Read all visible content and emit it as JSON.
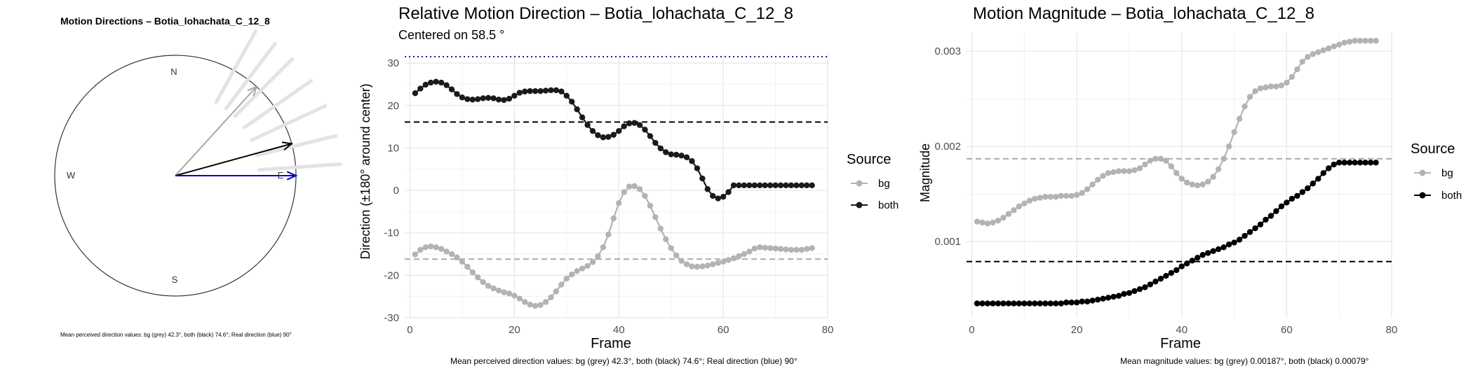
{
  "colors": {
    "bg": "#b3b3b3",
    "both": "#1a1a1a",
    "real": "#0000cc",
    "dark_blue_dotted": "#1f1f8f",
    "grid": "#ebebeb"
  },
  "compass": {
    "title": "Motion Directions – Botia_lohachata_C_12_8",
    "labels": {
      "n": "N",
      "e": "E",
      "s": "S",
      "w": "W"
    },
    "caption": "Mean perceived direction values: bg (grey) 42.3°, both (black) 74.6°; Real direction (blue) 90°"
  },
  "direction_plot": {
    "title": "Relative Motion Direction – Botia_lohachata_C_12_8",
    "subtitle": "Centered on  58.5 °",
    "xlabel": "Frame",
    "ylabel": "Direction (±180° around center)",
    "xticks": [
      "0",
      "20",
      "40",
      "60",
      "80"
    ],
    "yticks": [
      "-30",
      "-20",
      "-10",
      "0",
      "10",
      "20",
      "30"
    ],
    "legend_title": "Source",
    "legend_bg": "bg",
    "legend_both": "both",
    "caption": "Mean perceived direction values: bg (grey) 42.3°, both (black) 74.6°; Real direction (blue) 90°"
  },
  "magnitude_plot": {
    "title": "Motion Magnitude – Botia_lohachata_C_12_8",
    "xlabel": "Frame",
    "ylabel": "Magnitude",
    "xticks": [
      "0",
      "20",
      "40",
      "60",
      "80"
    ],
    "yticks": [
      "0.001",
      "0.002",
      "0.003"
    ],
    "legend_title": "Source",
    "legend_bg": "bg",
    "legend_both": "both",
    "caption": "Mean magnitude values: bg (grey) 0.00187°, both (black) 0.00079°"
  },
  "chart_data": [
    {
      "type": "polar",
      "arrows": [
        {
          "name": "bg",
          "angle_deg": 42.3,
          "color": "#a8a8a8"
        },
        {
          "name": "both",
          "angle_deg": 74.6,
          "color": "#000000"
        },
        {
          "name": "real",
          "angle_deg": 90,
          "color": "#0000cc"
        }
      ],
      "faint_arrows_deg": [
        29,
        37,
        45,
        55,
        65,
        76,
        86
      ]
    },
    {
      "type": "line",
      "xlim": [
        -1,
        80
      ],
      "ylim": [
        -30,
        32
      ],
      "hlines": [
        {
          "y": 31.5,
          "style": "dotted",
          "color": "#1f1f8f"
        },
        {
          "y": 16.1,
          "style": "dashed",
          "color": "#000000"
        },
        {
          "y": -16.2,
          "style": "dashed",
          "color": "#aaaaaa"
        }
      ],
      "series": [
        {
          "name": "bg",
          "color": "#b3b3b3",
          "x": [
            1,
            2,
            3,
            4,
            5,
            6,
            7,
            8,
            9,
            10,
            11,
            12,
            13,
            14,
            15,
            16,
            17,
            18,
            19,
            20,
            21,
            22,
            23,
            24,
            25,
            26,
            27,
            28,
            29,
            30,
            31,
            32,
            33,
            34,
            35,
            36,
            37,
            38,
            39,
            40,
            41,
            42,
            43,
            44,
            45,
            46,
            47,
            48,
            49,
            50,
            51,
            52,
            53,
            54,
            55,
            56,
            57,
            58,
            59,
            60,
            61,
            62,
            63,
            64,
            65,
            66,
            67,
            68,
            69,
            70,
            71,
            72,
            73,
            74,
            75,
            76,
            77
          ],
          "y": [
            -15.1,
            -14.0,
            -13.4,
            -13.2,
            -13.4,
            -13.8,
            -14.4,
            -15.0,
            -15.8,
            -16.8,
            -18.0,
            -19.3,
            -20.5,
            -21.6,
            -22.5,
            -23.1,
            -23.6,
            -24.0,
            -24.3,
            -24.8,
            -25.5,
            -26.3,
            -26.9,
            -27.2,
            -27.0,
            -26.3,
            -25.2,
            -23.8,
            -22.2,
            -20.8,
            -19.8,
            -19.0,
            -18.4,
            -17.8,
            -16.9,
            -15.5,
            -13.4,
            -10.4,
            -6.6,
            -3.0,
            -0.4,
            0.9,
            1.0,
            0.3,
            -1.3,
            -3.6,
            -6.3,
            -9.0,
            -11.5,
            -13.6,
            -15.3,
            -16.6,
            -17.4,
            -17.9,
            -18.0,
            -17.9,
            -17.7,
            -17.4,
            -17.1,
            -16.8,
            -16.4,
            -16.0,
            -15.5,
            -15.0,
            -14.4,
            -13.7,
            -13.4,
            -13.5,
            -13.6,
            -13.7,
            -13.8,
            -13.9,
            -14.0,
            -14.0,
            -14.0,
            -13.8,
            -13.6
          ]
        },
        {
          "name": "both",
          "color": "#1a1a1a",
          "x": [
            1,
            2,
            3,
            4,
            5,
            6,
            7,
            8,
            9,
            10,
            11,
            12,
            13,
            14,
            15,
            16,
            17,
            18,
            19,
            20,
            21,
            22,
            23,
            24,
            25,
            26,
            27,
            28,
            29,
            30,
            31,
            32,
            33,
            34,
            35,
            36,
            37,
            38,
            39,
            40,
            41,
            42,
            43,
            44,
            45,
            46,
            47,
            48,
            49,
            50,
            51,
            52,
            53,
            54,
            55,
            56,
            57,
            58,
            59,
            60,
            61,
            62,
            63,
            64,
            65,
            66,
            67,
            68,
            69,
            70,
            71,
            72,
            73,
            74,
            75,
            76,
            77
          ],
          "y": [
            22.9,
            24.0,
            24.9,
            25.4,
            25.6,
            25.4,
            24.8,
            23.8,
            22.7,
            21.9,
            21.5,
            21.4,
            21.5,
            21.7,
            21.8,
            21.7,
            21.4,
            21.3,
            21.6,
            22.3,
            23.0,
            23.3,
            23.4,
            23.4,
            23.4,
            23.5,
            23.6,
            23.6,
            23.3,
            22.3,
            20.9,
            19.1,
            17.2,
            15.4,
            14.0,
            13.0,
            12.5,
            12.6,
            13.1,
            14.0,
            15.1,
            15.8,
            15.9,
            15.4,
            14.3,
            12.8,
            11.2,
            9.9,
            9.0,
            8.5,
            8.4,
            8.2,
            7.8,
            6.9,
            5.2,
            2.8,
            0.3,
            -1.3,
            -1.9,
            -1.5,
            -0.4,
            1.2,
            1.2,
            1.2,
            1.2,
            1.2,
            1.2,
            1.2,
            1.2,
            1.2,
            1.2,
            1.2,
            1.2,
            1.2,
            1.2,
            1.2,
            1.2
          ]
        }
      ]
    },
    {
      "type": "line",
      "xlim": [
        -1,
        80
      ],
      "ylim": [
        0.0002,
        0.0032
      ],
      "hlines": [
        {
          "y": 0.00187,
          "style": "dashed",
          "color": "#aaaaaa"
        },
        {
          "y": 0.00079,
          "style": "dashed",
          "color": "#000000"
        }
      ],
      "series": [
        {
          "name": "bg",
          "color": "#b3b3b3",
          "x": [
            1,
            2,
            3,
            4,
            5,
            6,
            7,
            8,
            9,
            10,
            11,
            12,
            13,
            14,
            15,
            16,
            17,
            18,
            19,
            20,
            21,
            22,
            23,
            24,
            25,
            26,
            27,
            28,
            29,
            30,
            31,
            32,
            33,
            34,
            35,
            36,
            37,
            38,
            39,
            40,
            41,
            42,
            43,
            44,
            45,
            46,
            47,
            48,
            49,
            50,
            51,
            52,
            53,
            54,
            55,
            56,
            57,
            58,
            59,
            60,
            61,
            62,
            63,
            64,
            65,
            66,
            67,
            68,
            69,
            70,
            71,
            72,
            73,
            74,
            75,
            76,
            77
          ],
          "y": [
            0.00121,
            0.0012,
            0.00119,
            0.0012,
            0.00122,
            0.00125,
            0.00129,
            0.00133,
            0.00137,
            0.0014,
            0.00143,
            0.00145,
            0.00146,
            0.00147,
            0.00147,
            0.00147,
            0.00148,
            0.00148,
            0.00148,
            0.00149,
            0.00151,
            0.00155,
            0.0016,
            0.00165,
            0.00169,
            0.00172,
            0.00173,
            0.00174,
            0.00174,
            0.00174,
            0.00175,
            0.00177,
            0.00181,
            0.00185,
            0.00187,
            0.00187,
            0.00185,
            0.00179,
            0.00172,
            0.00166,
            0.00162,
            0.0016,
            0.00159,
            0.0016,
            0.00163,
            0.00168,
            0.00176,
            0.00187,
            0.002,
            0.00215,
            0.00229,
            0.00242,
            0.00252,
            0.00258,
            0.00261,
            0.00262,
            0.00263,
            0.00263,
            0.00264,
            0.00267,
            0.00273,
            0.00281,
            0.00289,
            0.00294,
            0.00297,
            0.00299,
            0.00301,
            0.00303,
            0.00305,
            0.00307,
            0.00309,
            0.0031,
            0.00311,
            0.00311,
            0.00311,
            0.00311,
            0.00311
          ]
        },
        {
          "name": "both",
          "color": "#000000",
          "x": [
            1,
            2,
            3,
            4,
            5,
            6,
            7,
            8,
            9,
            10,
            11,
            12,
            13,
            14,
            15,
            16,
            17,
            18,
            19,
            20,
            21,
            22,
            23,
            24,
            25,
            26,
            27,
            28,
            29,
            30,
            31,
            32,
            33,
            34,
            35,
            36,
            37,
            38,
            39,
            40,
            41,
            42,
            43,
            44,
            45,
            46,
            47,
            48,
            49,
            50,
            51,
            52,
            53,
            54,
            55,
            56,
            57,
            58,
            59,
            60,
            61,
            62,
            63,
            64,
            65,
            66,
            67,
            68,
            69,
            70,
            71,
            72,
            73,
            74,
            75,
            76,
            77
          ],
          "y": [
            0.00035,
            0.00035,
            0.00035,
            0.00035,
            0.00035,
            0.00035,
            0.00035,
            0.00035,
            0.00035,
            0.00035,
            0.00035,
            0.00035,
            0.00035,
            0.00035,
            0.00035,
            0.00035,
            0.00035,
            0.00036,
            0.00036,
            0.00036,
            0.00037,
            0.00037,
            0.00038,
            0.00039,
            0.0004,
            0.00041,
            0.00042,
            0.00043,
            0.00045,
            0.00046,
            0.00048,
            0.0005,
            0.00052,
            0.00055,
            0.00058,
            0.00061,
            0.00064,
            0.00067,
            0.0007,
            0.00074,
            0.00077,
            0.0008,
            0.00083,
            0.00086,
            0.00088,
            0.0009,
            0.00092,
            0.00094,
            0.00097,
            0.00099,
            0.00102,
            0.00106,
            0.0011,
            0.00114,
            0.00118,
            0.00123,
            0.00127,
            0.00132,
            0.00137,
            0.00141,
            0.00145,
            0.00148,
            0.00152,
            0.00156,
            0.00161,
            0.00166,
            0.00172,
            0.00177,
            0.00181,
            0.00183,
            0.00183,
            0.00183,
            0.00183,
            0.00183,
            0.00183,
            0.00183,
            0.00183
          ]
        }
      ]
    }
  ]
}
